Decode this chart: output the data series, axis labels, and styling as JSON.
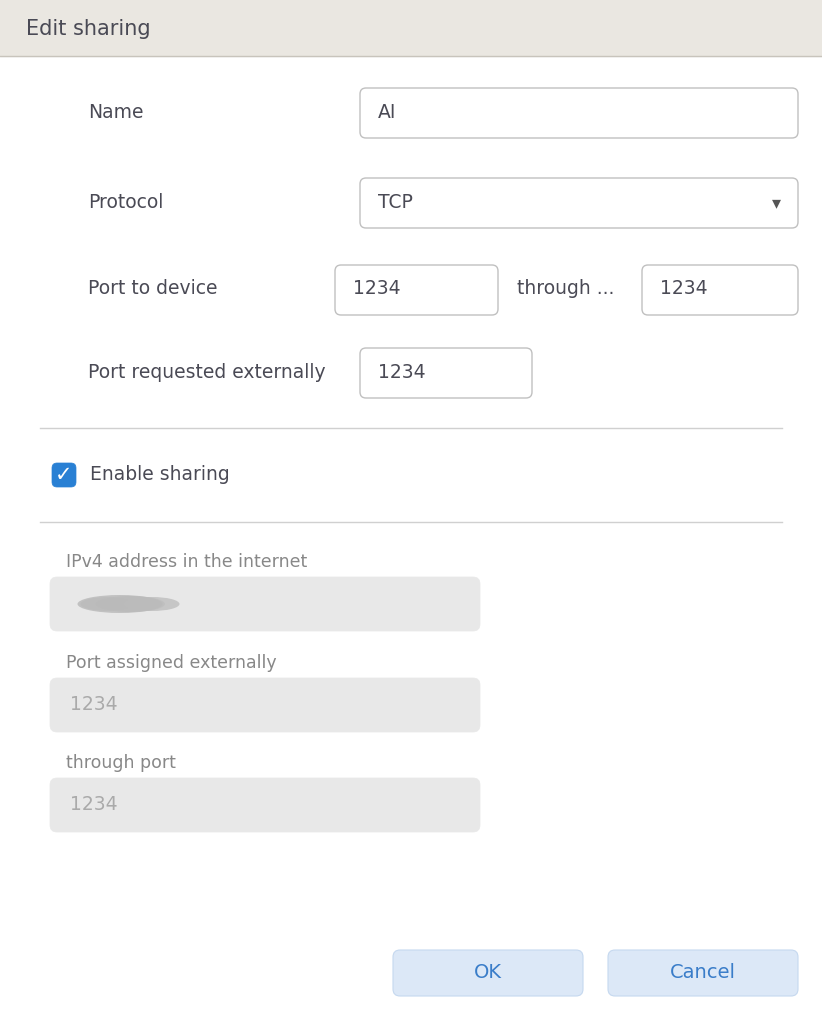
{
  "title": "Edit sharing",
  "title_bg": "#eae7e1",
  "body_bg": "#ffffff",
  "separator_color": "#d0d0d0",
  "label_color": "#4a4a55",
  "sublabel_color": "#888888",
  "input_border_color": "#c0c0c0",
  "input_bg": "#ffffff",
  "disabled_input_bg": "#e8e8e8",
  "disabled_text_color": "#aaaaaa",
  "field_label_name": "Name",
  "field_label_protocol": "Protocol",
  "field_label_port_device": "Port to device",
  "field_label_port_external": "Port requested externally",
  "field_label_ipv4": "IPv4 address in the internet",
  "field_label_port_assigned": "Port assigned externally",
  "field_label_through_port": "through port",
  "name_value": "AI",
  "protocol_value": "TCP",
  "port_value": "1234",
  "through_text": "through ...",
  "enable_label": "Enable sharing",
  "checkbox_color": "#2980d4",
  "ok_label": "OK",
  "cancel_label": "Cancel",
  "button_bg": "#dce8f7",
  "button_text_color": "#3a7dc9",
  "button_border_color": "#c5d8ef",
  "title_fontsize": 15,
  "label_fontsize": 13.5,
  "input_fontsize": 13.5,
  "sublabel_fontsize": 12.5,
  "button_fontsize": 14
}
